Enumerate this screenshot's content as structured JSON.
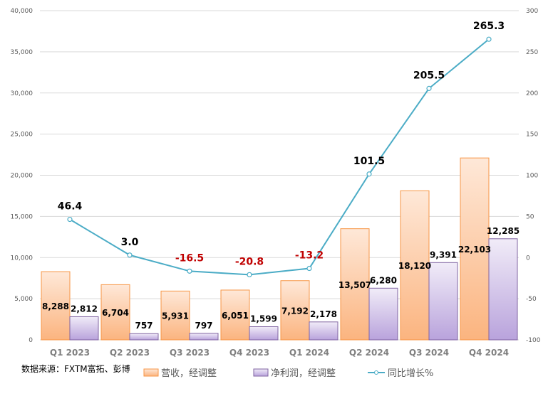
{
  "chart_data": {
    "type": "bar",
    "categories": [
      "Q1 2023",
      "Q2 2023",
      "Q3 2023",
      "Q4 2023",
      "Q1 2024",
      "Q2 2024",
      "Q3 2024",
      "Q4 2024"
    ],
    "series": [
      {
        "name": "营收，经调整",
        "type": "bar",
        "axis": "left",
        "values": [
          8288,
          6704,
          5931,
          6051,
          7192,
          13507,
          18120,
          22103
        ],
        "labels": [
          "8,288",
          "6,704",
          "5,931",
          "6,051",
          "7,192",
          "13,507",
          "18,120",
          "22,103"
        ],
        "color": "#f79646"
      },
      {
        "name": "净利润，经调整",
        "type": "bar",
        "axis": "left",
        "values": [
          2812,
          757,
          797,
          1599,
          2178,
          6280,
          9391,
          12285
        ],
        "labels": [
          "2,812",
          "757",
          "797",
          "1,599",
          "2,178",
          "6,280",
          "9,391",
          "12,285"
        ],
        "color": "#8064a2"
      },
      {
        "name": "同比增长%",
        "type": "line",
        "axis": "right",
        "values": [
          46.4,
          3.0,
          -16.5,
          -20.8,
          -13.2,
          101.5,
          205.5,
          265.3
        ],
        "labels": [
          "46.4",
          "3.0",
          "-16.5",
          "-20.8",
          "-13.2",
          "101.5",
          "205.5",
          "265.3"
        ],
        "color": "#4bacc6"
      }
    ],
    "ylim": [
      0,
      40000
    ],
    "y_ticks": [
      "0",
      "5,000",
      "10,000",
      "15,000",
      "20,000",
      "25,000",
      "30,000",
      "35,000",
      "40,000"
    ],
    "y2lim": [
      -100,
      300
    ],
    "y2_ticks": [
      "-100",
      "-50",
      "0",
      "50",
      "100",
      "150",
      "200",
      "250",
      "300"
    ],
    "grid": true,
    "legend": "bottom",
    "negative_label_color": "#c00000",
    "source_note": "数据来源：FXTM富拓、彭博"
  }
}
